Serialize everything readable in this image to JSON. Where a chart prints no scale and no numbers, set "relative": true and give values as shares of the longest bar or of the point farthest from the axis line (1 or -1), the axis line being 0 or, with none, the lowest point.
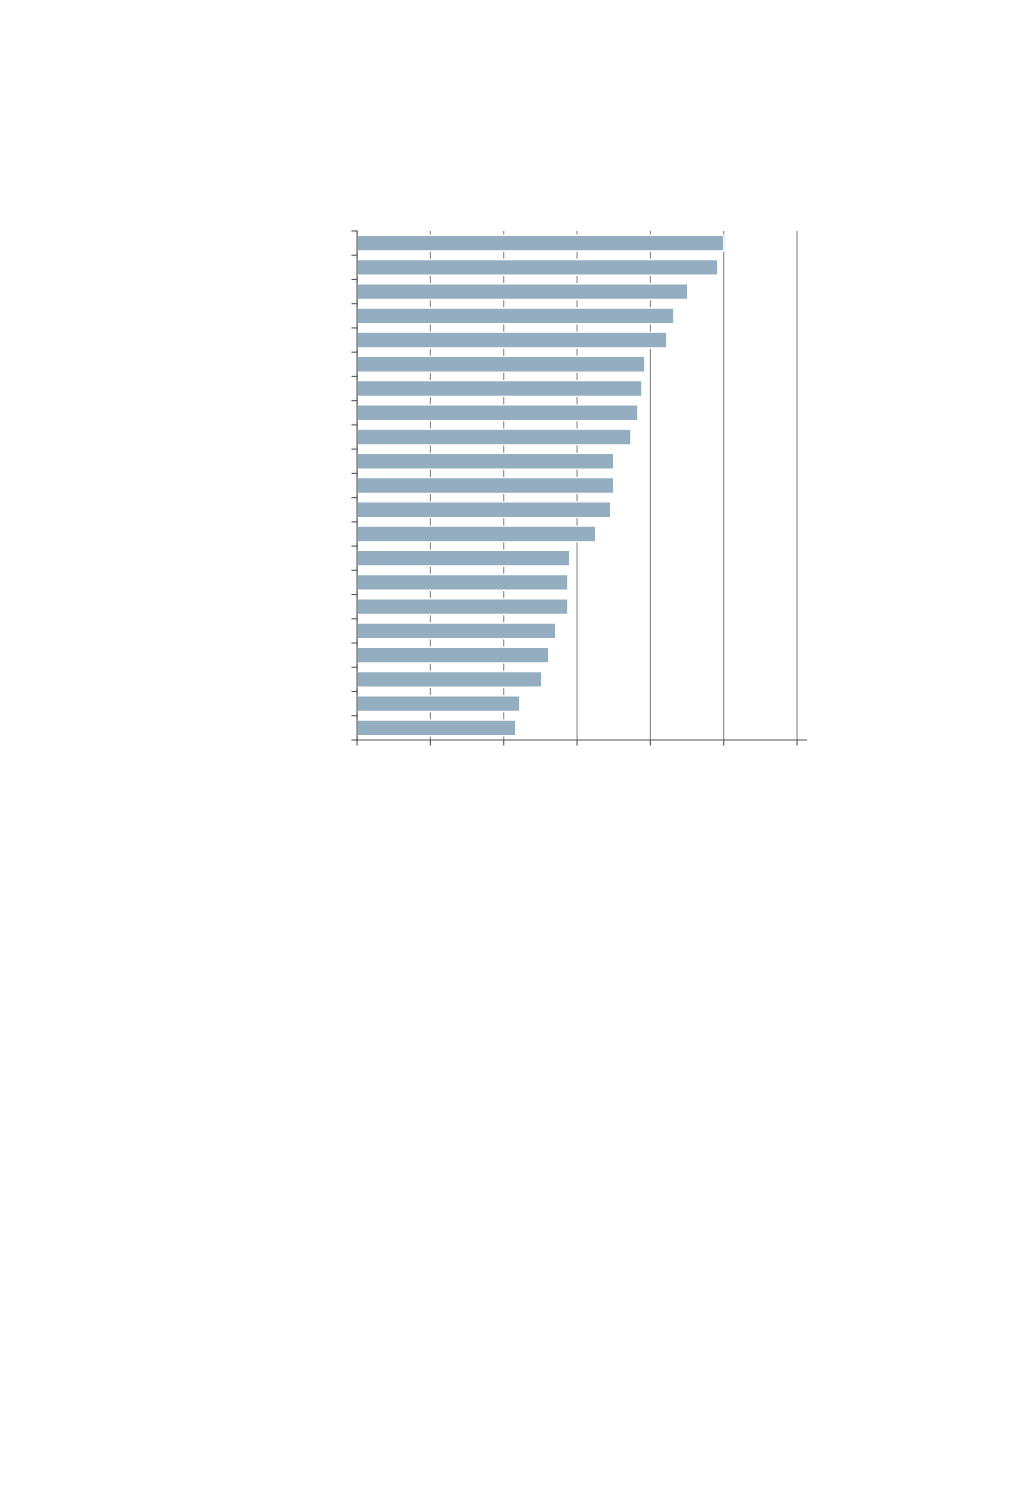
{
  "chart_data": {
    "type": "bar",
    "orientation": "horizontal",
    "relative": true,
    "grid": "x",
    "color": "#94aebf",
    "categories": [
      null,
      null,
      null,
      null,
      null,
      null,
      null,
      null,
      null,
      null,
      null,
      null,
      null,
      null,
      null,
      null,
      null,
      null,
      null,
      null,
      null
    ],
    "values": [
      1,
      0.984,
      0.902,
      0.864,
      0.845,
      0.785,
      0.777,
      0.766,
      0.747,
      0.7,
      0.7,
      0.692,
      0.651,
      0.58,
      0.575,
      0.575,
      0.542,
      0.523,
      0.504,
      0.444,
      0.433
    ]
  }
}
